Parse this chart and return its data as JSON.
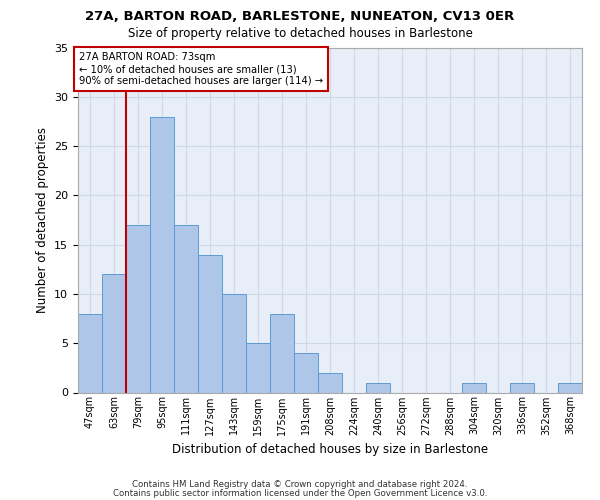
{
  "title1": "27A, BARTON ROAD, BARLESTONE, NUNEATON, CV13 0ER",
  "title2": "Size of property relative to detached houses in Barlestone",
  "xlabel": "Distribution of detached houses by size in Barlestone",
  "ylabel": "Number of detached properties",
  "bar_labels": [
    "47sqm",
    "63sqm",
    "79sqm",
    "95sqm",
    "111sqm",
    "127sqm",
    "143sqm",
    "159sqm",
    "175sqm",
    "191sqm",
    "208sqm",
    "224sqm",
    "240sqm",
    "256sqm",
    "272sqm",
    "288sqm",
    "304sqm",
    "320sqm",
    "336sqm",
    "352sqm",
    "368sqm"
  ],
  "bar_values": [
    8,
    12,
    17,
    28,
    17,
    14,
    10,
    5,
    8,
    4,
    2,
    0,
    1,
    0,
    0,
    0,
    1,
    0,
    1,
    0,
    1
  ],
  "bar_color": "#aec6e8",
  "bar_edge_color": "#5b9bd5",
  "vline_x": 1.5,
  "vline_color": "#c00000",
  "annotation_text": "27A BARTON ROAD: 73sqm\n← 10% of detached houses are smaller (13)\n90% of semi-detached houses are larger (114) →",
  "annotation_box_color": "#ffffff",
  "annotation_box_edge_color": "#c00000",
  "ylim": [
    0,
    35
  ],
  "yticks": [
    0,
    5,
    10,
    15,
    20,
    25,
    30,
    35
  ],
  "grid_color": "#d0d8e8",
  "bg_color": "#e8eef8",
  "footnote1": "Contains HM Land Registry data © Crown copyright and database right 2024.",
  "footnote2": "Contains public sector information licensed under the Open Government Licence v3.0."
}
